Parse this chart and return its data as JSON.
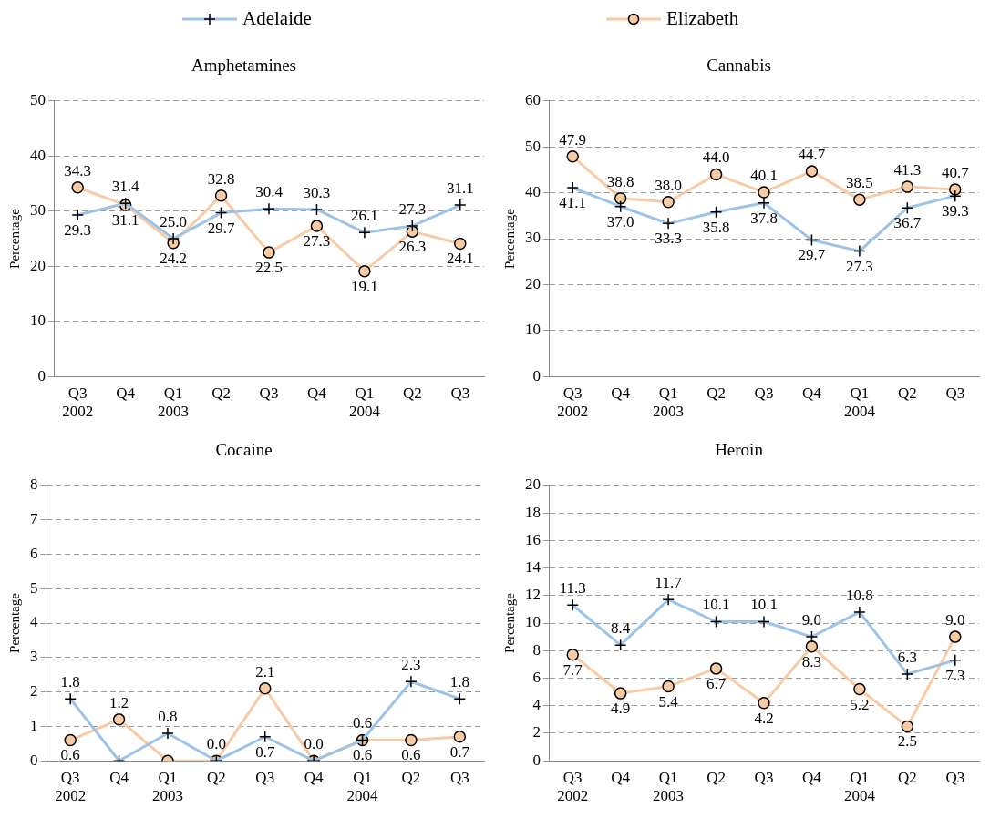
{
  "chart_data": [
    {
      "type": "line",
      "title": "Amphetamines",
      "ylabel": "Percentage",
      "categories": [
        "Q3\n2002",
        "Q4",
        "Q1\n2003",
        "Q2",
        "Q3",
        "Q4",
        "Q1\n2004",
        "Q2",
        "Q3"
      ],
      "ylim": [
        0,
        50
      ],
      "yticks": [
        0,
        10,
        20,
        30,
        40,
        50
      ],
      "grid": "y",
      "legend": "top",
      "series": [
        {
          "name": "Adelaide",
          "color": "#9dc3e6",
          "marker": "cross",
          "values": [
            29.3,
            31.4,
            25.0,
            29.7,
            30.4,
            30.3,
            26.1,
            27.3,
            31.1
          ],
          "value_labels": [
            "29.3",
            "31.4",
            "25.0",
            "29.7",
            "30.4",
            "30.3",
            "26.1",
            "27.3",
            "31.1"
          ]
        },
        {
          "name": "Elizabeth",
          "color": "#f8cba4",
          "marker": "circle",
          "values": [
            34.3,
            31.1,
            24.2,
            32.8,
            22.5,
            27.3,
            19.1,
            26.3,
            24.1
          ],
          "value_labels": [
            "34.3",
            "31.1",
            "24.2",
            "32.8",
            "22.5",
            "27.3",
            "19.1",
            "26.3",
            "24.1"
          ]
        }
      ]
    },
    {
      "type": "line",
      "title": "Cannabis",
      "ylabel": "Percentage",
      "categories": [
        "Q3\n2002",
        "Q4",
        "Q1\n2003",
        "Q2",
        "Q3",
        "Q4",
        "Q1\n2004",
        "Q2",
        "Q3"
      ],
      "ylim": [
        0,
        60
      ],
      "yticks": [
        0,
        10,
        20,
        30,
        40,
        50,
        60
      ],
      "grid": "y",
      "series": [
        {
          "color": "#9dc3e6",
          "marker": "cross",
          "values": [
            41.1,
            37.0,
            33.3,
            35.8,
            37.8,
            29.7,
            27.3,
            36.7,
            39.3
          ],
          "value_labels": [
            "41.1",
            "37.0",
            "33.3",
            "35.8",
            "37.8",
            "29.7",
            "27.3",
            "36.7",
            "39.3"
          ]
        },
        {
          "color": "#f8cba4",
          "marker": "circle",
          "values": [
            47.9,
            38.8,
            38.0,
            44.0,
            40.1,
            44.7,
            38.5,
            41.3,
            40.7
          ],
          "value_labels": [
            "47.9",
            "38.8",
            "38.0",
            "44.0",
            "40.1",
            "44.7",
            "38.5",
            "41.3",
            "40.7"
          ]
        }
      ]
    },
    {
      "type": "line",
      "title": "Cocaine",
      "ylabel": "Percentage",
      "categories": [
        "Q3\n2002",
        "Q4",
        "Q1\n2003",
        "Q2",
        "Q3",
        "Q4",
        "Q1\n2004",
        "Q2",
        "Q3"
      ],
      "ylim": [
        0,
        8
      ],
      "yticks": [
        0,
        1,
        2,
        3,
        4,
        5,
        6,
        7,
        8
      ],
      "grid": "y",
      "series": [
        {
          "color": "#9dc3e6",
          "marker": "cross",
          "values": [
            1.8,
            0.0,
            0.8,
            0.0,
            0.7,
            0.0,
            0.6,
            2.3,
            1.8
          ],
          "value_labels": [
            "1.8",
            null,
            "0.8",
            "0.0",
            "0.7",
            "0.0",
            "0.6",
            "2.3",
            "1.8"
          ]
        },
        {
          "color": "#f8cba4",
          "marker": "circle",
          "values": [
            0.6,
            1.2,
            0.0,
            0.0,
            2.1,
            0.0,
            0.6,
            0.6,
            0.7
          ],
          "value_labels": [
            "0.6",
            "1.2",
            null,
            null,
            "2.1",
            null,
            "0.6",
            "0.6",
            "0.7"
          ]
        }
      ]
    },
    {
      "type": "line",
      "title": "Heroin",
      "ylabel": "Percentage",
      "categories": [
        "Q3\n2002",
        "Q4",
        "Q1\n2003",
        "Q2",
        "Q3",
        "Q4",
        "Q1\n2004",
        "Q2",
        "Q3"
      ],
      "ylim": [
        0,
        20
      ],
      "yticks": [
        0,
        2,
        4,
        6,
        8,
        10,
        12,
        14,
        16,
        18,
        20
      ],
      "grid": "y",
      "series": [
        {
          "color": "#9dc3e6",
          "marker": "cross",
          "values": [
            11.3,
            8.4,
            11.7,
            10.1,
            10.1,
            9.0,
            10.8,
            6.3,
            7.3
          ],
          "value_labels": [
            "11.3",
            "8.4",
            "11.7",
            "10.1",
            "10.1",
            "9.0",
            "10.8",
            "6.3",
            "7.3"
          ]
        },
        {
          "color": "#f8cba4",
          "marker": "circle",
          "values": [
            7.7,
            4.9,
            5.4,
            6.7,
            4.2,
            8.3,
            5.2,
            2.5,
            9.0
          ],
          "value_labels": [
            "7.7",
            "4.9",
            "5.4",
            "6.7",
            "4.2",
            "8.3",
            "5.2",
            "2.5",
            "9.0"
          ]
        }
      ]
    }
  ]
}
